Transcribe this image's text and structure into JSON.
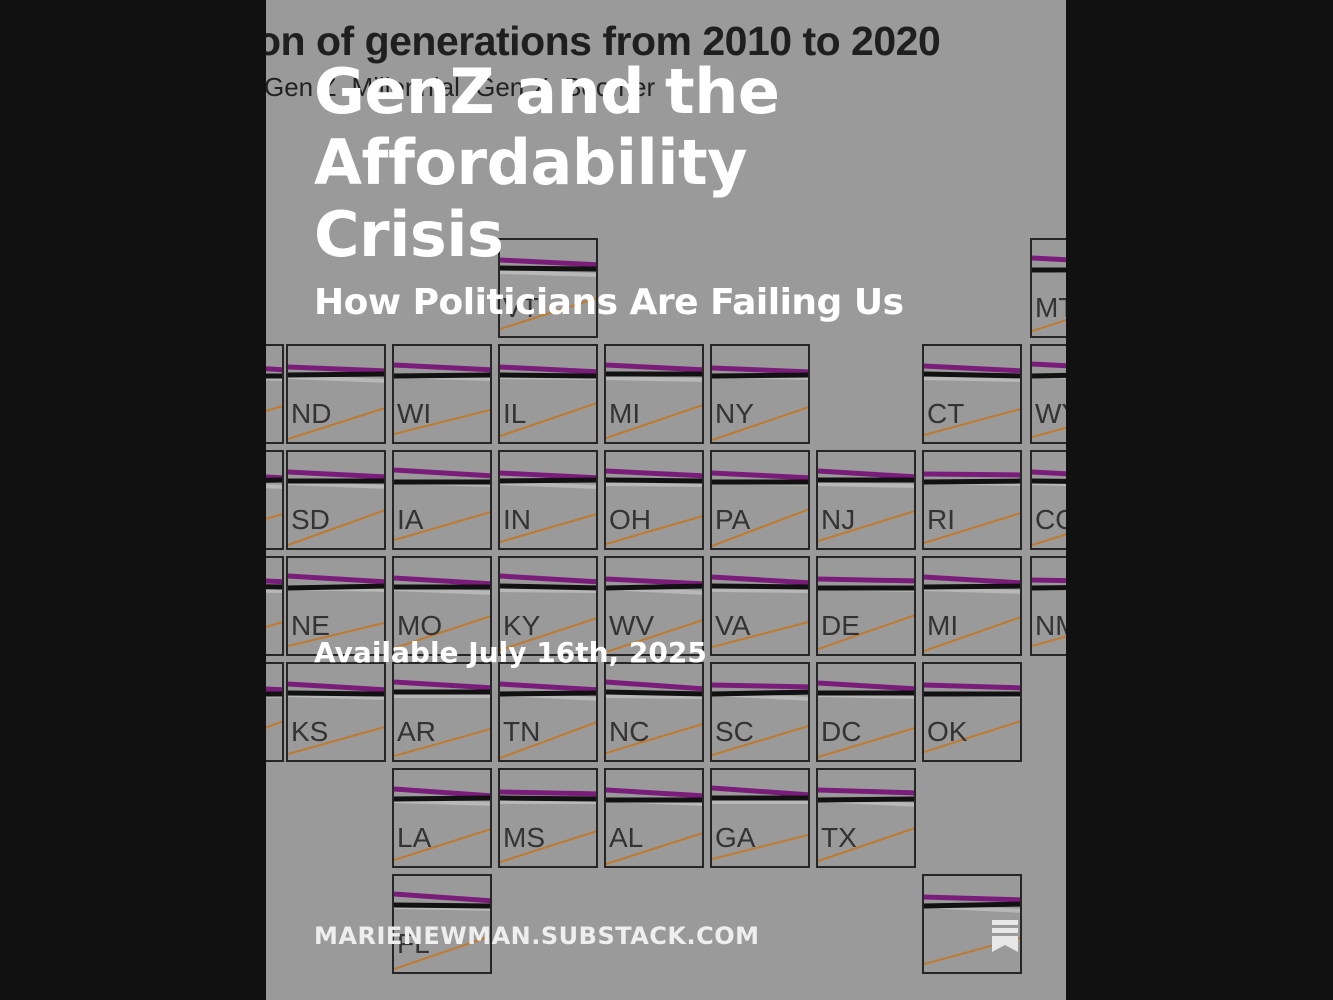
{
  "cover": {
    "title": "GenZ and the Affordability Crisis",
    "subtitle": "How Politicians Are Failing Us",
    "availability": "Available July 16th, 2025",
    "site": "MARIENEWMAN.SUBSTACK.COM"
  },
  "background_chart": {
    "heading_fragment": "on of generations from 2010 to 2020",
    "legend": [
      "Gen Z",
      "Millennial",
      "Gen X",
      "Boomer"
    ],
    "states": [
      "VT",
      "MT",
      "ND",
      "WI",
      "IL",
      "MI",
      "NY",
      "CT",
      "WY",
      "SD",
      "IA",
      "IN",
      "OH",
      "PA",
      "NJ",
      "RI",
      "CO",
      "NE",
      "MO",
      "KY",
      "WV",
      "VA",
      "DE",
      "MI",
      "NM",
      "KS",
      "AR",
      "TN",
      "NC",
      "SC",
      "DC",
      "OK",
      "LA",
      "MS",
      "AL",
      "GA",
      "TX",
      "FL"
    ]
  },
  "colors": {
    "card_background": "#9a9a9a",
    "page_background": "#111111",
    "boomer": "#7a1d7a",
    "genx": "#111111",
    "millennial": "#b8b8b8",
    "genz": "#c07a2e"
  },
  "icons": {
    "bookmark": "bookmark-icon"
  }
}
